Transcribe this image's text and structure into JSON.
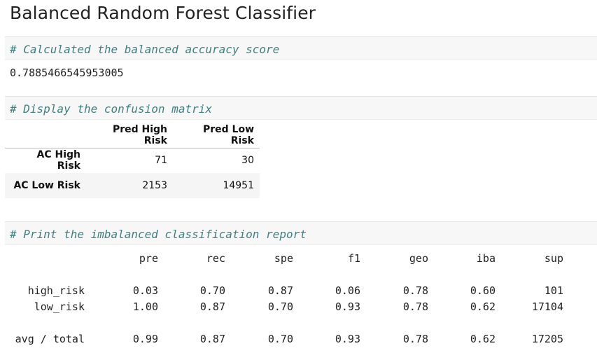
{
  "title": "Balanced Random Forest Classifier",
  "cells": {
    "accuracy_comment": "# Calculated the balanced accuracy score",
    "accuracy_value": "0.7885466545953005",
    "matrix_comment": "# Display the confusion matrix",
    "report_comment": "# Print the imbalanced classification report"
  },
  "confusion_matrix": {
    "columns": [
      "Pred High Risk",
      "Pred Low Risk"
    ],
    "rows": [
      {
        "label": "AC High Risk",
        "values": [
          "71",
          "30"
        ]
      },
      {
        "label": "AC Low Risk",
        "values": [
          "2153",
          "14951"
        ]
      }
    ]
  },
  "report": {
    "headers": [
      "pre",
      "rec",
      "spe",
      "f1",
      "geo",
      "iba",
      "sup"
    ],
    "rows": [
      {
        "label": "high_risk",
        "values": [
          "0.03",
          "0.70",
          "0.87",
          "0.06",
          "0.78",
          "0.60",
          "101"
        ]
      },
      {
        "label": "low_risk",
        "values": [
          "1.00",
          "0.87",
          "0.70",
          "0.93",
          "0.78",
          "0.62",
          "17104"
        ]
      },
      {
        "label": "avg / total",
        "values": [
          "0.99",
          "0.87",
          "0.70",
          "0.93",
          "0.78",
          "0.62",
          "17205"
        ]
      }
    ]
  }
}
